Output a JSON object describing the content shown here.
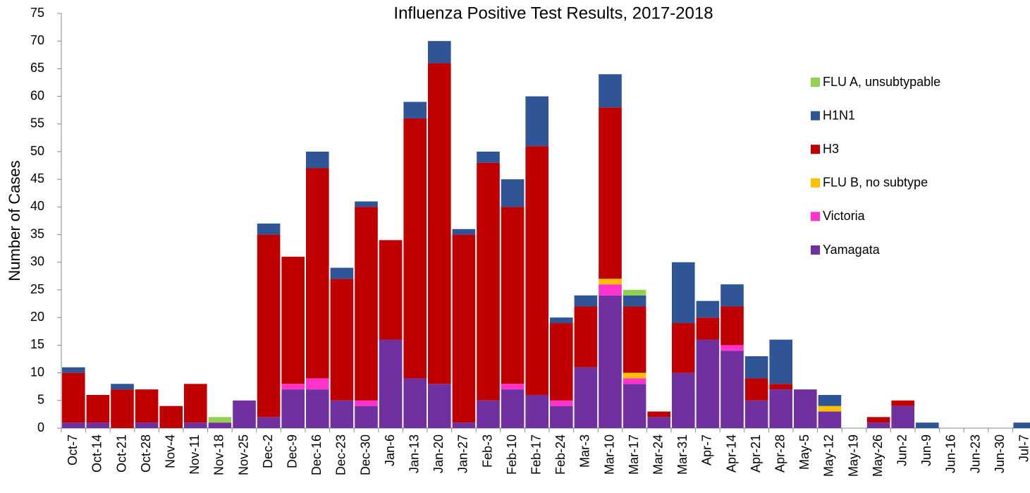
{
  "chart_data": {
    "type": "stacked_bar",
    "title": "Influenza Positive Test Results, 2017-2018",
    "y_label": "Number of Cases",
    "categories": [
      "Oct-7",
      "Oct-14",
      "Oct-21",
      "Oct-28",
      "Nov-4",
      "Nov-11",
      "Nov-18",
      "Nov-25",
      "Dec-2",
      "Dec-9",
      "Dec-16",
      "Dec-23",
      "Dec-30",
      "Jan-6",
      "Jan-13",
      "Jan-20",
      "Jan-27",
      "Feb-3",
      "Feb-10",
      "Feb-17",
      "Feb-24",
      "Mar-3",
      "Mar-10",
      "Mar-17",
      "Mar-24",
      "Mar-31",
      "Apr-7",
      "Apr-14",
      "Apr-21",
      "Apr-28",
      "May-5",
      "May-12",
      "May-19",
      "May-26",
      "Jun-2",
      "Jun-9",
      "Jun-16",
      "Jun-23",
      "Jun-30",
      "Jul-7"
    ],
    "series": [
      {
        "name": "Yamagata",
        "color": "#7030a0",
        "values": [
          1,
          1,
          0,
          1,
          0,
          1,
          1,
          5,
          2,
          7,
          7,
          5,
          4,
          16,
          9,
          8,
          1,
          5,
          7,
          6,
          4,
          11,
          24,
          8,
          2,
          10,
          16,
          14,
          5,
          7,
          7,
          3,
          0,
          1,
          4,
          0,
          0,
          0,
          0,
          0
        ]
      },
      {
        "name": "Victoria",
        "color": "#ff33cc",
        "values": [
          0,
          0,
          0,
          0,
          0,
          0,
          0,
          0,
          0,
          1,
          2,
          0,
          1,
          0,
          0,
          0,
          0,
          0,
          1,
          0,
          1,
          0,
          2,
          1,
          0,
          0,
          0,
          1,
          0,
          0,
          0,
          0,
          0,
          0,
          0,
          0,
          0,
          0,
          0,
          0
        ]
      },
      {
        "name": "FLU B, no subtype",
        "color": "#ffc000",
        "values": [
          0,
          0,
          0,
          0,
          0,
          0,
          0,
          0,
          0,
          0,
          0,
          0,
          0,
          0,
          0,
          0,
          0,
          0,
          0,
          0,
          0,
          0,
          1,
          1,
          0,
          0,
          0,
          0,
          0,
          0,
          0,
          1,
          0,
          0,
          0,
          0,
          0,
          0,
          0,
          0
        ]
      },
      {
        "name": "H3",
        "color": "#c00000",
        "values": [
          9,
          5,
          7,
          6,
          4,
          7,
          0,
          0,
          33,
          23,
          38,
          22,
          35,
          18,
          47,
          58,
          34,
          43,
          32,
          45,
          14,
          11,
          31,
          12,
          1,
          9,
          4,
          7,
          4,
          1,
          0,
          0,
          0,
          1,
          1,
          0,
          0,
          0,
          0,
          0
        ]
      },
      {
        "name": "H1N1",
        "color": "#2f5597",
        "values": [
          1,
          0,
          1,
          0,
          0,
          0,
          0,
          0,
          2,
          0,
          3,
          2,
          1,
          0,
          3,
          4,
          1,
          2,
          5,
          9,
          1,
          2,
          6,
          2,
          0,
          11,
          3,
          4,
          4,
          8,
          0,
          2,
          0,
          0,
          0,
          1,
          0,
          0,
          0,
          1
        ]
      },
      {
        "name": "FLU A, unsubtypable",
        "color": "#92d050",
        "values": [
          0,
          0,
          0,
          0,
          0,
          0,
          1,
          0,
          0,
          0,
          0,
          0,
          0,
          0,
          0,
          0,
          0,
          0,
          0,
          0,
          0,
          0,
          0,
          1,
          0,
          0,
          0,
          0,
          0,
          0,
          0,
          0,
          0,
          0,
          0,
          0,
          0,
          0,
          0,
          0
        ]
      }
    ],
    "ylim": [
      0,
      75
    ],
    "yticks": [
      0,
      5,
      10,
      15,
      20,
      25,
      30,
      35,
      40,
      45,
      50,
      55,
      60,
      65,
      70,
      75
    ]
  }
}
